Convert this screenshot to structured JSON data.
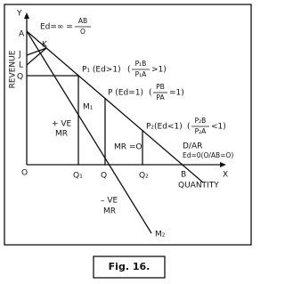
{
  "axes": {
    "y": "Y",
    "y_title": "REVENUE",
    "x": "X",
    "x_title": "QUANTITY",
    "origin": "O"
  },
  "points": {
    "A": "A",
    "J": "J",
    "K": "K",
    "L": "L",
    "Q_axis": "Q",
    "B": "B",
    "Q1": "Q₁",
    "Q": "Q",
    "Q2": "Q₂",
    "M1": "M₁",
    "M2": "M₂"
  },
  "annotations": {
    "ed_infinite": {
      "text": "Ed=∞ =",
      "num": "AB",
      "den": "O"
    },
    "p1": {
      "text": "P₁ (Ed>1)",
      "open": "(",
      "num": "P₁B",
      "den": "P₁A",
      "rel": ">1)"
    },
    "p": {
      "text": "P (Ed=1)",
      "open": "(",
      "num": "PB",
      "den": "PA",
      "rel": "=1)"
    },
    "p2": {
      "text": "P₂(Ed<1)",
      "open": "(",
      "num": "P₂B",
      "den": "P₂A",
      "rel": "<1)"
    },
    "dar": "D/AR",
    "ed_zero": "Ed=0(O/AB=O)",
    "pos_mr": [
      "+ VE",
      "MR"
    ],
    "zero_mr": "MR =O",
    "neg_mr": [
      "– VE",
      "MR"
    ]
  },
  "caption": "Fig. 16."
}
